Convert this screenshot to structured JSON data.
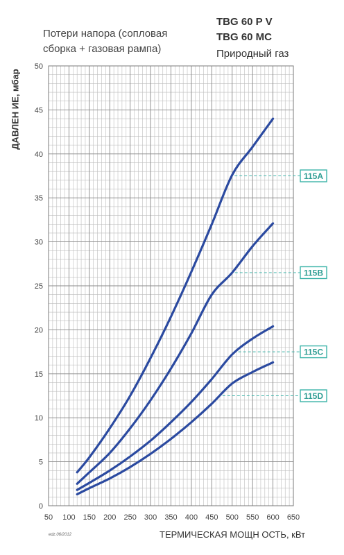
{
  "header": {
    "subtitle_line1": "Потери напора (сопловая",
    "subtitle_line2": "сборка + газовая рампа)",
    "model_line1": "TBG 60 P V",
    "model_line2": "TBG 60 MC",
    "gas": "Природный газ"
  },
  "footer_code": "edz.06/2012",
  "colors": {
    "curve": "#2b4aa0",
    "grid": "#999999",
    "label_border": "#3bb3a8",
    "label_text": "#2e9d93"
  },
  "chart_data": {
    "type": "line",
    "xlabel": "ТЕРМИЧЕСКАЯ МОЩН ОСТЬ, кВт",
    "ylabel": "ДАВЛЕН ИЕ, мбар",
    "xlim": [
      50,
      650
    ],
    "ylim": [
      0,
      50
    ],
    "x_ticks": [
      50,
      100,
      150,
      200,
      250,
      300,
      350,
      400,
      450,
      500,
      550,
      600,
      650
    ],
    "y_ticks": [
      0,
      5,
      10,
      15,
      20,
      25,
      30,
      35,
      40,
      45,
      50
    ],
    "grid": true,
    "series": [
      {
        "name": "115A",
        "x": [
          120,
          150,
          200,
          250,
          300,
          350,
          400,
          450,
          500,
          550,
          600
        ],
        "y": [
          3.8,
          5.5,
          8.8,
          12.5,
          16.8,
          21.5,
          26.6,
          32.0,
          37.6,
          40.8,
          44.0
        ],
        "label_y": 37.5
      },
      {
        "name": "115B",
        "x": [
          120,
          150,
          200,
          250,
          300,
          350,
          400,
          450,
          500,
          550,
          600
        ],
        "y": [
          2.5,
          3.8,
          6.0,
          8.8,
          12.0,
          15.6,
          19.6,
          24.0,
          26.5,
          29.5,
          32.1
        ],
        "label_y": 26.5
      },
      {
        "name": "115C",
        "x": [
          120,
          150,
          200,
          250,
          300,
          350,
          400,
          450,
          500,
          550,
          600
        ],
        "y": [
          1.8,
          2.6,
          4.0,
          5.6,
          7.4,
          9.5,
          11.8,
          14.4,
          17.2,
          19.0,
          20.4
        ],
        "label_y": 17.5
      },
      {
        "name": "115D",
        "x": [
          120,
          150,
          200,
          250,
          300,
          350,
          400,
          450,
          500,
          550,
          600
        ],
        "y": [
          1.3,
          2.0,
          3.1,
          4.4,
          5.9,
          7.6,
          9.5,
          11.6,
          13.9,
          15.2,
          16.3
        ],
        "label_y": 12.5
      }
    ]
  }
}
